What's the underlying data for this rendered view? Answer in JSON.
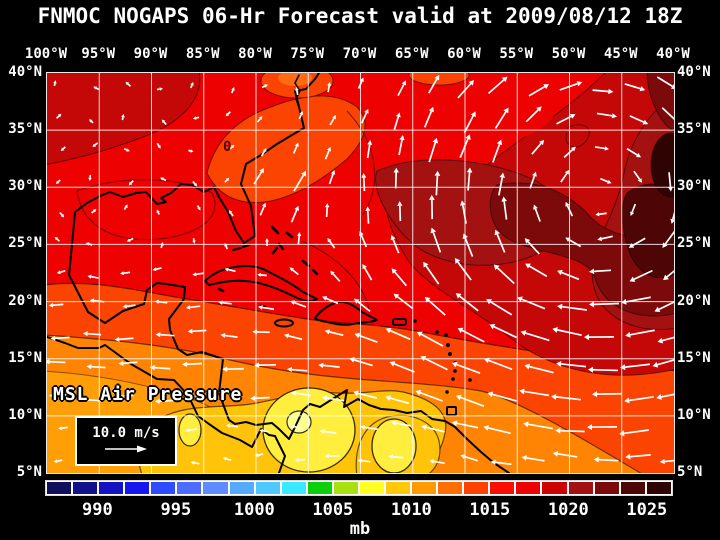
{
  "title": "FNMOC NOGAPS 06-Hr Forecast valid at 2009/08/12 18Z",
  "map": {
    "field_label": "MSL Air Pressure",
    "contour_annotation": "0",
    "wind_legend": {
      "label": "10.0 m/s"
    },
    "axes": {
      "top_lon": [
        "100°W",
        "95°W",
        "90°W",
        "85°W",
        "80°W",
        "75°W",
        "70°W",
        "65°W",
        "60°W",
        "55°W",
        "50°W",
        "45°W",
        "40°W"
      ],
      "left_lat": [
        "40°N",
        "35°N",
        "30°N",
        "25°N",
        "20°N",
        "15°N",
        "10°N",
        "5°N"
      ],
      "right_lat": [
        "40°N",
        "35°N",
        "30°N",
        "25°N",
        "20°N",
        "15°N",
        "10°N",
        "5°N"
      ],
      "lon_step_deg": 5,
      "lat_step_deg": 5
    },
    "palette": {
      "red": "#ee0101",
      "dark1": "#c40707",
      "dark2": "#a31111",
      "dark3": "#7d0a0a",
      "dark4": "#4e0505",
      "dark5": "#300303",
      "orange_red": "#fb4302",
      "orange_red_lt": "#ff6a14",
      "orange": "#ff8404",
      "orange_lt": "#ff9e06",
      "amber": "#ffc40a",
      "yellow": "#ffee3e",
      "yellow_lt": "#ffff8c",
      "coast": "#000000",
      "contour": "#4a0000",
      "grid": "#ffffff",
      "arrow": "#ffffff"
    }
  },
  "colorbar": {
    "unit": "mb",
    "ticks": [
      "990",
      "995",
      "1000",
      "1005",
      "1010",
      "1015",
      "1020",
      "1025"
    ],
    "tick_boundary_index": [
      2,
      5,
      8,
      11,
      14,
      17,
      20,
      23
    ],
    "colors": [
      "#10105e",
      "#12128c",
      "#1414c2",
      "#1616ee",
      "#2f4bff",
      "#4a6cff",
      "#5e8cff",
      "#53aaff",
      "#4ec8ff",
      "#3ae8ff",
      "#0ad00a",
      "#a8e010",
      "#ffff24",
      "#ffc808",
      "#ff9a04",
      "#ff6e02",
      "#ff4102",
      "#fb0d01",
      "#ee0101",
      "#cd0202",
      "#a31111",
      "#7d0a0a",
      "#4e0505",
      "#300303"
    ],
    "segments": 24
  },
  "chart_data": {
    "type": "heatmap",
    "title": "FNMOC NOGAPS 06-Hr Forecast valid at 2009/08/12 18Z",
    "field": "MSL Air Pressure",
    "unit": "mb",
    "lon_range": [
      "100°W",
      "40°W"
    ],
    "lat_range": [
      "5°N",
      "40°N"
    ],
    "colorbar_ticks_mb": [
      990,
      995,
      1000,
      1005,
      1010,
      1015,
      1020,
      1025
    ],
    "wind_reference_speed": "10.0 m/s",
    "readings": [
      {
        "region": "subtropical Atlantic high core near 42W 30N",
        "approx_pressure_mb": 1026
      },
      {
        "region": "broad Atlantic high 65W-40W / 20N-40N",
        "approx_pressure_mb": 1018
      },
      {
        "region": "Gulf of Mexico / Caribbean / SE US",
        "approx_pressure_mb": 1014
      },
      {
        "region": "southeast US weak trough (contour label 0)",
        "approx_pressure_mb": 1012
      },
      {
        "region": "Central America / Venezuela band",
        "approx_pressure_mb": 1010
      },
      {
        "region": "Panama / NW South America minima",
        "approx_pressure_mb": 1007
      }
    ],
    "wind_pattern": "white vector arrows: clockwise flow around Atlantic high, strong easterly trade winds 8N-20N, weak winds over Gulf of Mexico and SE US"
  }
}
